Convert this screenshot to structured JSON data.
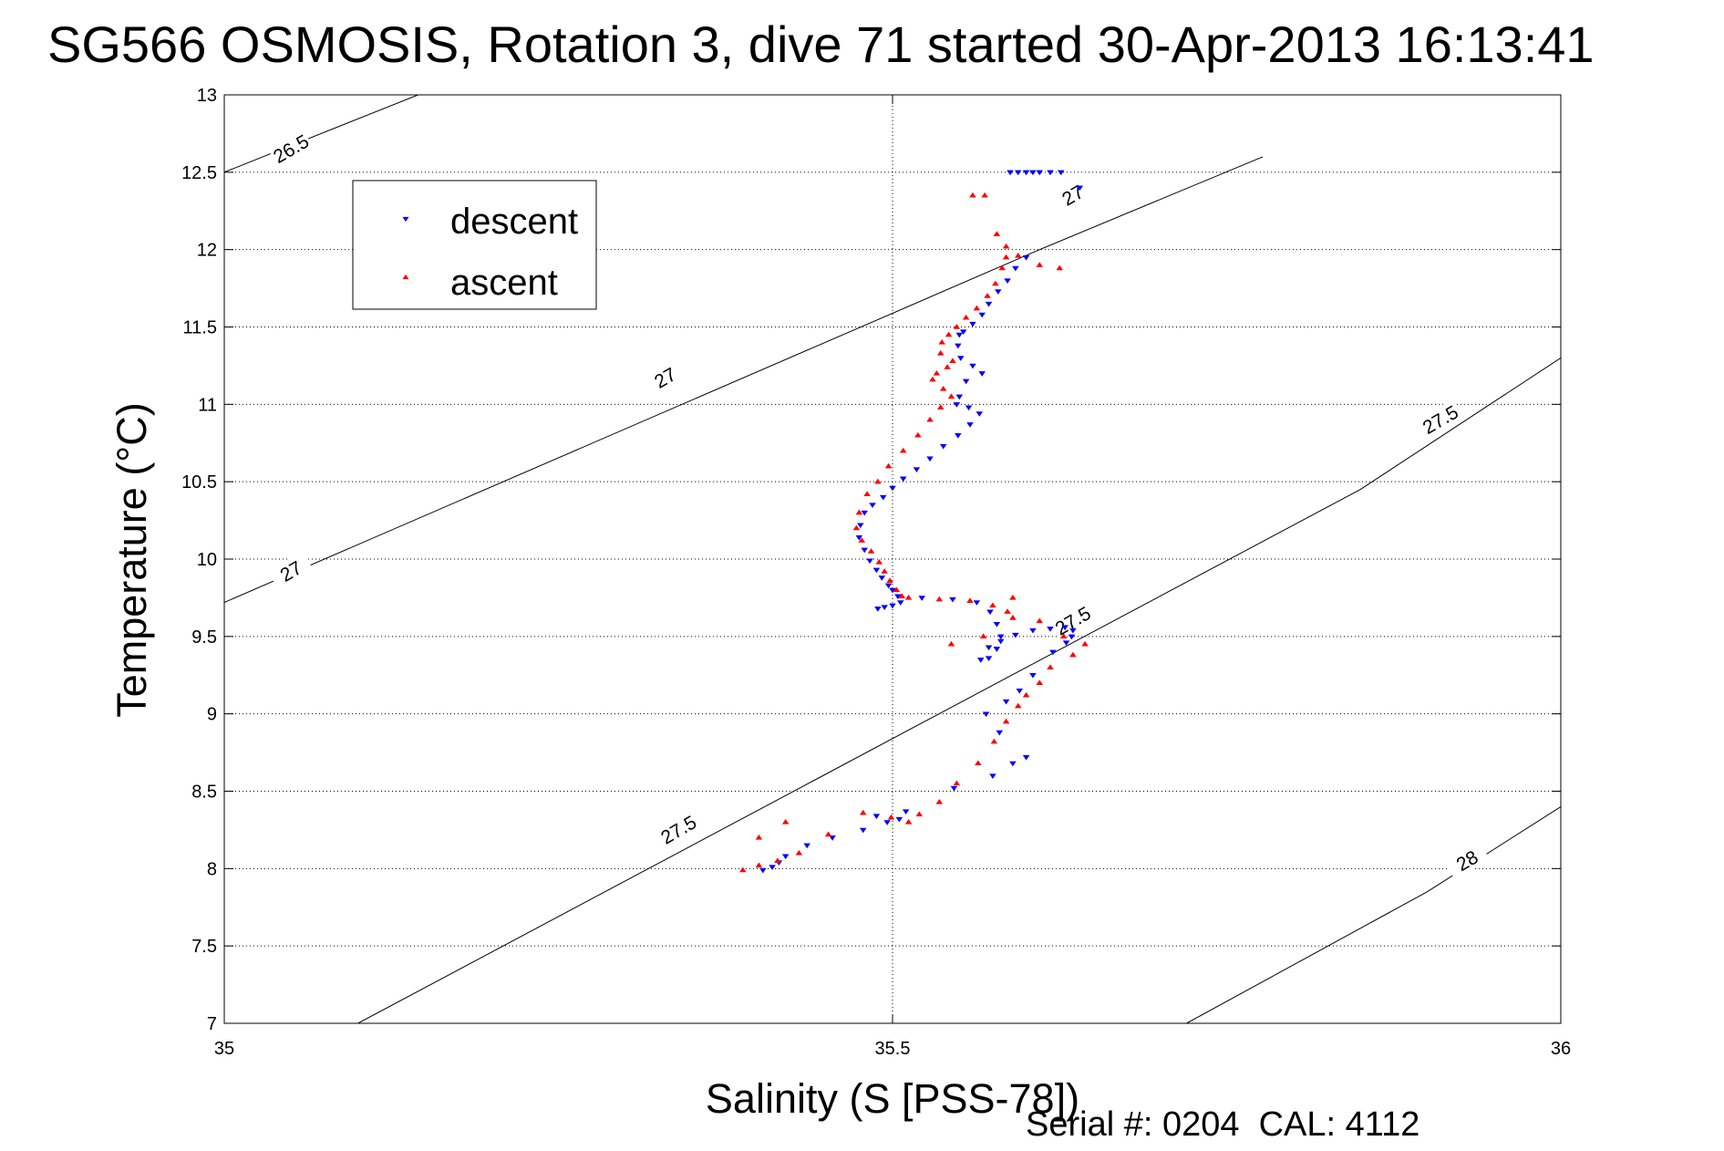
{
  "chart_data": {
    "type": "scatter",
    "title": "SG566 OSMOSIS, Rotation 3, dive 71 started 30-Apr-2013 16:13:41",
    "xlabel": "Salinity (S [PSS-78])",
    "ylabel": "Temperature (°C)",
    "xlim": [
      35,
      36
    ],
    "ylim": [
      7,
      13
    ],
    "xticks": [
      35,
      35.5,
      36
    ],
    "yticks": [
      7,
      7.5,
      8,
      8.5,
      9,
      9.5,
      10,
      10.5,
      11,
      11.5,
      12,
      12.5,
      13
    ],
    "xtick_labels": [
      "35",
      "35.5",
      "36"
    ],
    "ytick_labels": [
      "7",
      "7.5",
      "8",
      "8.5",
      "9",
      "9.5",
      "10",
      "10.5",
      "11",
      "11.5",
      "12",
      "12.5",
      "13"
    ],
    "grid": true,
    "legend_position": "top-left",
    "contour_lines": [
      {
        "label": "26.5",
        "x": [
          35,
          35.145
        ],
        "y": [
          12.5,
          13
        ]
      },
      {
        "label": "27",
        "x": [
          35,
          35.61,
          35.777
        ],
        "y": [
          9.72,
          12.0,
          12.6
        ]
      },
      {
        "label": "27.5",
        "x": [
          35.1,
          35.35,
          35.6,
          35.85,
          36
        ],
        "y": [
          7.0,
          8.15,
          9.3,
          10.45,
          11.3
        ]
      },
      {
        "label": "28",
        "x": [
          35.72,
          35.9,
          36
        ],
        "y": [
          7.0,
          7.85,
          8.4
        ]
      }
    ],
    "contour_label_positions": [
      {
        "text": "26.5",
        "x": 35.05,
        "y": 12.65
      },
      {
        "text": "27",
        "x": 35.05,
        "y": 9.92
      },
      {
        "text": "27",
        "x": 35.33,
        "y": 11.17
      },
      {
        "text": "27",
        "x": 35.635,
        "y": 12.35
      },
      {
        "text": "27.5",
        "x": 35.34,
        "y": 8.25
      },
      {
        "text": "27.5",
        "x": 35.635,
        "y": 9.6
      },
      {
        "text": "27.5",
        "x": 35.91,
        "y": 10.9
      },
      {
        "text": "28",
        "x": 35.93,
        "y": 8.05
      }
    ],
    "series": [
      {
        "name": "descent",
        "color": "#0000ff",
        "marker": "triangle-down",
        "x": [
          35.588,
          35.594,
          35.6,
          35.605,
          35.61,
          35.618,
          35.626,
          35.64,
          35.6,
          35.592,
          35.586,
          35.579,
          35.572,
          35.567,
          35.56,
          35.553,
          35.55,
          35.549,
          35.551,
          35.56,
          35.567,
          35.555,
          35.55,
          35.548,
          35.557,
          35.565,
          35.558,
          35.549,
          35.538,
          35.528,
          35.518,
          35.508,
          35.5,
          35.493,
          35.485,
          35.479,
          35.476,
          35.475,
          35.479,
          35.483,
          35.488,
          35.492,
          35.497,
          35.5,
          35.504,
          35.506,
          35.5,
          35.494,
          35.489,
          35.522,
          35.545,
          35.563,
          35.573,
          35.578,
          35.581,
          35.578,
          35.572,
          35.566,
          35.572,
          35.581,
          35.592,
          35.605,
          35.618,
          35.629,
          35.635,
          35.634,
          35.63,
          35.62,
          35.605,
          35.595,
          35.585,
          35.57,
          35.58,
          35.6,
          35.59,
          35.575,
          35.546,
          35.51,
          35.505,
          35.496,
          35.488,
          35.478,
          35.455,
          35.436,
          35.42,
          35.415,
          35.41,
          35.403
        ],
        "y": [
          12.5,
          12.5,
          12.5,
          12.5,
          12.5,
          12.5,
          12.5,
          12.4,
          11.95,
          11.88,
          11.8,
          11.73,
          11.65,
          11.58,
          11.52,
          11.47,
          11.45,
          11.38,
          11.3,
          11.25,
          11.2,
          11.15,
          11.05,
          11.0,
          10.98,
          10.94,
          10.87,
          10.8,
          10.73,
          10.65,
          10.58,
          10.52,
          10.46,
          10.4,
          10.35,
          10.3,
          10.22,
          10.14,
          10.06,
          9.99,
          9.93,
          9.88,
          9.83,
          9.8,
          9.76,
          9.72,
          9.7,
          9.69,
          9.68,
          9.75,
          9.74,
          9.72,
          9.66,
          9.58,
          9.5,
          9.42,
          9.36,
          9.35,
          9.43,
          9.47,
          9.51,
          9.54,
          9.55,
          9.56,
          9.54,
          9.5,
          9.46,
          9.4,
          9.25,
          9.15,
          9.08,
          9.0,
          8.88,
          8.72,
          8.68,
          8.6,
          8.52,
          8.37,
          8.32,
          8.3,
          8.34,
          8.25,
          8.2,
          8.15,
          8.08,
          8.04,
          8.01,
          7.99
        ]
      },
      {
        "name": "ascent",
        "color": "#ff0000",
        "marker": "triangle-up",
        "x": [
          35.56,
          35.569,
          35.578,
          35.585,
          35.594,
          35.61,
          35.625,
          35.585,
          35.582,
          35.577,
          35.571,
          35.563,
          35.555,
          35.548,
          35.542,
          35.537,
          35.536,
          35.545,
          35.541,
          35.533,
          35.53,
          35.538,
          35.544,
          35.536,
          35.528,
          35.519,
          35.508,
          35.497,
          35.489,
          35.481,
          35.475,
          35.473,
          35.477,
          35.484,
          35.49,
          35.494,
          35.498,
          35.503,
          35.507,
          35.512,
          35.535,
          35.558,
          35.575,
          35.586,
          35.59,
          35.568,
          35.544,
          35.59,
          35.61,
          35.628,
          35.644,
          35.635,
          35.618,
          35.61,
          35.6,
          35.594,
          35.585,
          35.576,
          35.564,
          35.548,
          35.535,
          35.52,
          35.512,
          35.499,
          35.478,
          35.452,
          35.43,
          35.414,
          35.4,
          35.388,
          35.4,
          35.42
        ],
        "y": [
          12.35,
          12.35,
          12.1,
          12.02,
          11.96,
          11.9,
          11.88,
          11.95,
          11.88,
          11.78,
          11.7,
          11.62,
          11.56,
          11.5,
          11.45,
          11.4,
          11.33,
          11.28,
          11.24,
          11.2,
          11.16,
          11.1,
          11.05,
          10.98,
          10.9,
          10.8,
          10.7,
          10.6,
          10.5,
          10.42,
          10.3,
          10.2,
          10.12,
          10.05,
          9.98,
          9.92,
          9.86,
          9.8,
          9.76,
          9.75,
          9.74,
          9.73,
          9.7,
          9.66,
          9.62,
          9.5,
          9.45,
          9.75,
          9.6,
          9.5,
          9.45,
          9.38,
          9.3,
          9.2,
          9.12,
          9.05,
          8.95,
          8.82,
          8.68,
          8.55,
          8.43,
          8.35,
          8.3,
          8.33,
          8.36,
          8.22,
          8.1,
          8.05,
          8.02,
          7.99,
          8.2,
          8.3
        ]
      }
    ]
  },
  "footer": {
    "serial_text": "Serial #: 0204  CAL: 4112"
  },
  "style": {
    "descent_color": "#0000ff",
    "ascent_color": "#ff0000",
    "axis_color": "#000000",
    "background": "#ffffff"
  }
}
